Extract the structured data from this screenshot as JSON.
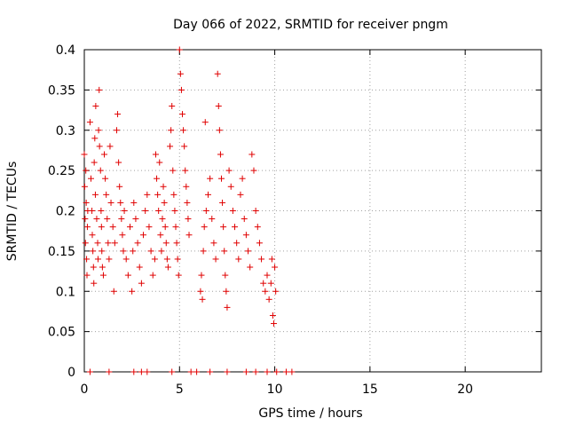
{
  "chart_data": {
    "type": "scatter",
    "title": "Day 066 of 2022, SRMTID for receiver pngm",
    "xlabel": "GPS time / hours",
    "ylabel": "SRMTID / TECUs",
    "xlim": [
      0,
      24
    ],
    "ylim": [
      0,
      0.4
    ],
    "x_ticks": [
      "0",
      "5",
      "10",
      "15",
      "20"
    ],
    "y_ticks": [
      "0",
      "0.05",
      "0.1",
      "0.15",
      "0.2",
      "0.25",
      "0.3",
      "0.35",
      "0.4"
    ],
    "grid": true,
    "marker": "plus",
    "color": "#e00000",
    "series": [
      {
        "points": [
          [
            0.0,
            0.27
          ],
          [
            0.02,
            0.23
          ],
          [
            0.04,
            0.19
          ],
          [
            0.06,
            0.16
          ],
          [
            0.08,
            0.25
          ],
          [
            0.1,
            0.21
          ],
          [
            0.12,
            0.14
          ],
          [
            0.14,
            0.12
          ],
          [
            0.16,
            0.18
          ],
          [
            0.18,
            0.2
          ],
          [
            0.3,
            0.31
          ],
          [
            0.35,
            0.24
          ],
          [
            0.4,
            0.2
          ],
          [
            0.42,
            0.17
          ],
          [
            0.45,
            0.15
          ],
          [
            0.48,
            0.13
          ],
          [
            0.5,
            0.11
          ],
          [
            0.52,
            0.26
          ],
          [
            0.55,
            0.29
          ],
          [
            0.58,
            0.22
          ],
          [
            0.6,
            0.33
          ],
          [
            0.65,
            0.19
          ],
          [
            0.7,
            0.16
          ],
          [
            0.72,
            0.14
          ],
          [
            0.75,
            0.3
          ],
          [
            0.78,
            0.35
          ],
          [
            0.8,
            0.28
          ],
          [
            0.85,
            0.25
          ],
          [
            0.88,
            0.2
          ],
          [
            0.9,
            0.18
          ],
          [
            0.92,
            0.15
          ],
          [
            0.95,
            0.13
          ],
          [
            1.0,
            0.12
          ],
          [
            1.05,
            0.27
          ],
          [
            1.1,
            0.24
          ],
          [
            1.15,
            0.22
          ],
          [
            1.2,
            0.19
          ],
          [
            1.25,
            0.16
          ],
          [
            1.3,
            0.14
          ],
          [
            1.35,
            0.28
          ],
          [
            1.4,
            0.21
          ],
          [
            1.5,
            0.18
          ],
          [
            1.55,
            0.1
          ],
          [
            1.6,
            0.16
          ],
          [
            1.7,
            0.3
          ],
          [
            1.75,
            0.32
          ],
          [
            1.8,
            0.26
          ],
          [
            1.85,
            0.23
          ],
          [
            1.9,
            0.21
          ],
          [
            1.95,
            0.19
          ],
          [
            2.0,
            0.17
          ],
          [
            2.05,
            0.15
          ],
          [
            2.1,
            0.2
          ],
          [
            2.2,
            0.14
          ],
          [
            2.3,
            0.12
          ],
          [
            2.4,
            0.18
          ],
          [
            2.5,
            0.1
          ],
          [
            2.55,
            0.15
          ],
          [
            2.6,
            0.21
          ],
          [
            2.7,
            0.19
          ],
          [
            2.8,
            0.16
          ],
          [
            2.9,
            0.13
          ],
          [
            3.0,
            0.11
          ],
          [
            3.1,
            0.17
          ],
          [
            3.2,
            0.2
          ],
          [
            3.3,
            0.22
          ],
          [
            3.4,
            0.18
          ],
          [
            3.5,
            0.15
          ],
          [
            3.6,
            0.12
          ],
          [
            3.7,
            0.14
          ],
          [
            3.75,
            0.27
          ],
          [
            3.8,
            0.24
          ],
          [
            3.85,
            0.22
          ],
          [
            3.9,
            0.2
          ],
          [
            3.95,
            0.26
          ],
          [
            4.0,
            0.17
          ],
          [
            4.05,
            0.15
          ],
          [
            4.1,
            0.19
          ],
          [
            4.15,
            0.23
          ],
          [
            4.2,
            0.21
          ],
          [
            4.25,
            0.18
          ],
          [
            4.3,
            0.16
          ],
          [
            4.35,
            0.14
          ],
          [
            4.4,
            0.13
          ],
          [
            4.5,
            0.28
          ],
          [
            4.55,
            0.3
          ],
          [
            4.6,
            0.33
          ],
          [
            4.65,
            0.25
          ],
          [
            4.7,
            0.22
          ],
          [
            4.75,
            0.2
          ],
          [
            4.8,
            0.18
          ],
          [
            4.85,
            0.16
          ],
          [
            4.9,
            0.14
          ],
          [
            4.95,
            0.12
          ],
          [
            5.0,
            0.4
          ],
          [
            5.05,
            0.37
          ],
          [
            5.1,
            0.35
          ],
          [
            5.15,
            0.32
          ],
          [
            5.2,
            0.3
          ],
          [
            5.25,
            0.28
          ],
          [
            5.3,
            0.25
          ],
          [
            5.35,
            0.23
          ],
          [
            5.4,
            0.21
          ],
          [
            5.45,
            0.19
          ],
          [
            5.5,
            0.17
          ],
          [
            6.1,
            0.1
          ],
          [
            6.15,
            0.12
          ],
          [
            6.2,
            0.09
          ],
          [
            6.25,
            0.15
          ],
          [
            6.3,
            0.18
          ],
          [
            6.35,
            0.31
          ],
          [
            6.4,
            0.2
          ],
          [
            6.5,
            0.22
          ],
          [
            6.6,
            0.24
          ],
          [
            6.7,
            0.19
          ],
          [
            6.8,
            0.16
          ],
          [
            6.9,
            0.14
          ],
          [
            7.0,
            0.37
          ],
          [
            7.05,
            0.33
          ],
          [
            7.1,
            0.3
          ],
          [
            7.15,
            0.27
          ],
          [
            7.2,
            0.24
          ],
          [
            7.25,
            0.21
          ],
          [
            7.3,
            0.18
          ],
          [
            7.35,
            0.15
          ],
          [
            7.4,
            0.12
          ],
          [
            7.45,
            0.1
          ],
          [
            7.5,
            0.08
          ],
          [
            7.6,
            0.25
          ],
          [
            7.7,
            0.23
          ],
          [
            7.8,
            0.2
          ],
          [
            7.9,
            0.18
          ],
          [
            8.0,
            0.16
          ],
          [
            8.1,
            0.14
          ],
          [
            8.2,
            0.22
          ],
          [
            8.3,
            0.24
          ],
          [
            8.4,
            0.19
          ],
          [
            8.5,
            0.17
          ],
          [
            8.6,
            0.15
          ],
          [
            8.7,
            0.13
          ],
          [
            8.8,
            0.27
          ],
          [
            8.9,
            0.25
          ],
          [
            9.0,
            0.2
          ],
          [
            9.1,
            0.18
          ],
          [
            9.2,
            0.16
          ],
          [
            9.3,
            0.14
          ],
          [
            9.4,
            0.11
          ],
          [
            9.5,
            0.1
          ],
          [
            9.6,
            0.12
          ],
          [
            9.7,
            0.09
          ],
          [
            9.8,
            0.11
          ],
          [
            9.85,
            0.14
          ],
          [
            9.9,
            0.07
          ],
          [
            9.95,
            0.06
          ],
          [
            10.0,
            0.13
          ],
          [
            10.05,
            0.1
          ],
          [
            0.3,
            0.0
          ],
          [
            1.3,
            0.0
          ],
          [
            2.6,
            0.0
          ],
          [
            3.0,
            0.0
          ],
          [
            3.3,
            0.0
          ],
          [
            4.6,
            0.0
          ],
          [
            5.6,
            0.0
          ],
          [
            5.9,
            0.0
          ],
          [
            6.6,
            0.0
          ],
          [
            7.5,
            0.0
          ],
          [
            8.5,
            0.0
          ],
          [
            9.0,
            0.0
          ],
          [
            9.6,
            0.0
          ],
          [
            10.1,
            0.0
          ],
          [
            10.6,
            0.0
          ],
          [
            10.9,
            0.0
          ]
        ]
      }
    ]
  }
}
